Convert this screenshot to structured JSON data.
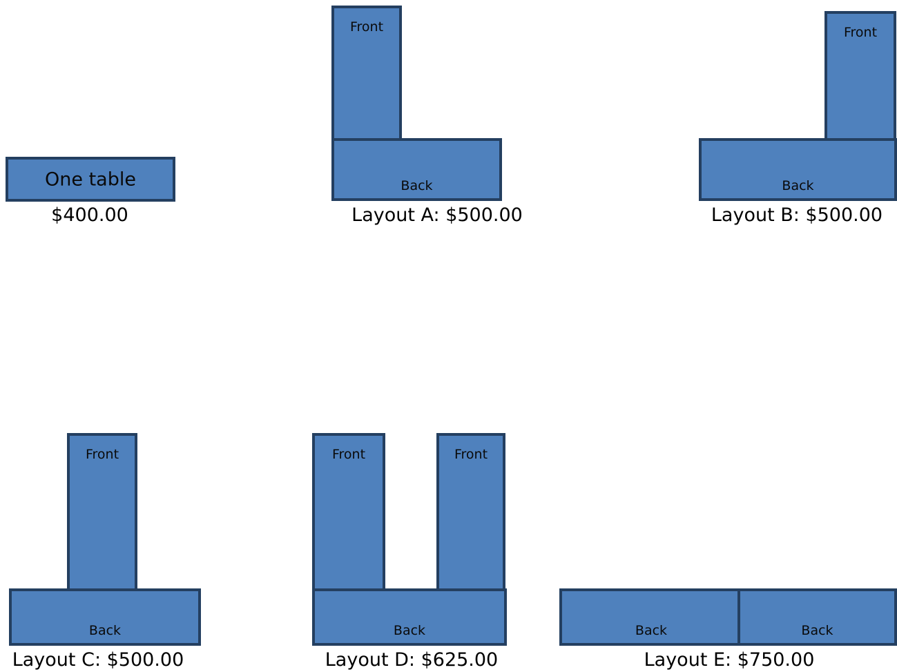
{
  "one_table": {
    "label": "One table",
    "price": "$400.00"
  },
  "layout_a": {
    "front": "Front",
    "back": "Back",
    "caption": "Layout A: $500.00"
  },
  "layout_b": {
    "front": "Front",
    "back": "Back",
    "caption": "Layout B: $500.00"
  },
  "layout_c": {
    "front": "Front",
    "back": "Back",
    "caption": "Layout C: $500.00"
  },
  "layout_d": {
    "front_left": "Front",
    "front_right": "Front",
    "back": "Back",
    "caption": "Layout D: $625.00"
  },
  "layout_e": {
    "back_left": "Back",
    "back_right": "Back",
    "caption": "Layout E: $750.00"
  },
  "colors": {
    "table_fill": "#4f81bd",
    "table_border": "#243f60"
  }
}
